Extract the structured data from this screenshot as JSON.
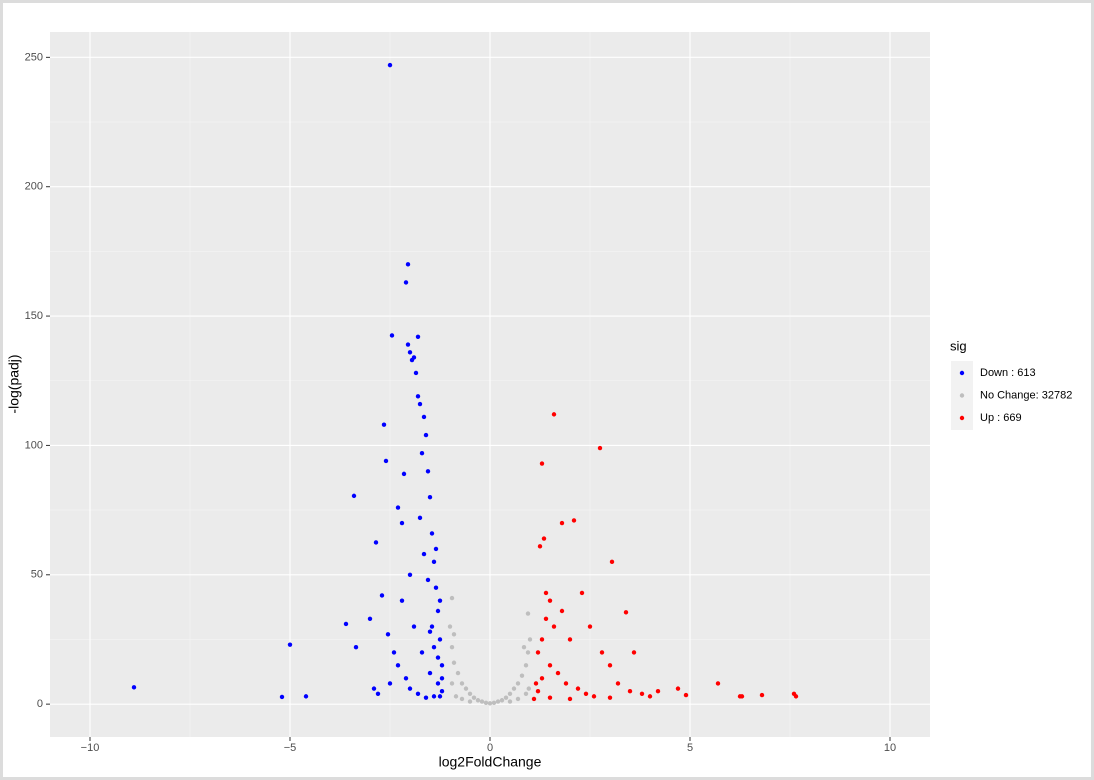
{
  "chart_data": {
    "type": "scatter",
    "x_label": "log2FoldChange",
    "y_label": "-log(padj)",
    "legend_title": "sig",
    "legend_position": "right",
    "grid": true,
    "xlim": [
      -11,
      11
    ],
    "ylim": [
      -12.7,
      259.8
    ],
    "xticks": [
      {
        "value": -10,
        "label": "−10"
      },
      {
        "value": -5,
        "label": "−5"
      },
      0,
      5,
      10
    ],
    "yticks": [
      0,
      50,
      100,
      150,
      200,
      250
    ],
    "series": [
      {
        "name": "Down : 613",
        "color": "#0000ff",
        "x": [
          -8.9,
          -5.2,
          -5.0,
          -4.6,
          -3.6,
          -3.4,
          -3.35,
          -3.0,
          -2.9,
          -2.8,
          -2.85,
          -2.7,
          -2.65,
          -2.6,
          -2.55,
          -2.5,
          -2.45,
          -2.3,
          -2.2,
          -2.15,
          -2.1,
          -2.05,
          -2.05,
          -2.0,
          -1.95,
          -1.9,
          -1.85,
          -1.8,
          -1.8,
          -1.75,
          -1.7,
          -1.65,
          -1.6,
          -1.55,
          -1.5,
          -1.45,
          -1.4,
          -1.35,
          -1.3,
          -1.25,
          -1.2,
          -1.2,
          -1.3,
          -1.5,
          -1.7,
          -1.9,
          -2.0,
          -2.1,
          -2.3,
          -2.5,
          -1.4,
          -1.6,
          -1.8,
          -2.0,
          -1.25,
          -1.35,
          -1.45,
          -1.55,
          -1.65,
          -1.75,
          -2.2,
          -2.4,
          -1.3,
          -1.4,
          -1.5,
          -1.2,
          -1.25
        ],
        "values": [
          6.5,
          2.8,
          23,
          3,
          31,
          80.5,
          22,
          33,
          6,
          4,
          62.5,
          42,
          108,
          94,
          27,
          247,
          142.5,
          76,
          70,
          89,
          163,
          170,
          139,
          136,
          133,
          134,
          128,
          142,
          119,
          116,
          97,
          111,
          104,
          90,
          80,
          66,
          55,
          45,
          36,
          25,
          15,
          5,
          8,
          12,
          20,
          30,
          50,
          10,
          15,
          8,
          3,
          2.5,
          4,
          6,
          40,
          60,
          30,
          48,
          58,
          72,
          40,
          20,
          18,
          22,
          28,
          10,
          3
        ]
      },
      {
        "name": "No Change: 32782",
        "color": "#bebebe",
        "x": [
          0,
          -0.1,
          0.1,
          -0.2,
          0.2,
          -0.3,
          0.3,
          -0.4,
          0.4,
          -0.5,
          0.5,
          -0.6,
          0.6,
          -0.7,
          0.7,
          -0.8,
          0.8,
          -0.9,
          0.9,
          -0.95,
          0.95,
          -1.0,
          1.0,
          -0.95,
          0.95,
          -0.9,
          0.85,
          -0.5,
          0.5,
          -0.7,
          0.7,
          -0.85,
          0.9,
          -0.95,
          0.97
        ],
        "values": [
          0.3,
          0.5,
          0.5,
          1,
          1,
          1.5,
          1.5,
          2.5,
          2.5,
          4,
          4,
          6,
          6,
          8,
          8,
          12,
          11,
          16,
          15,
          22,
          20,
          30,
          25,
          41,
          35,
          27,
          22,
          1,
          1,
          2,
          2,
          3,
          4,
          8,
          6
        ]
      },
      {
        "name": "Up : 669",
        "color": "#ff0000",
        "x": [
          1.1,
          1.2,
          1.3,
          1.25,
          1.35,
          1.3,
          1.6,
          1.8,
          2.1,
          2.75,
          3.05,
          3.4,
          3.6,
          2.3,
          1.4,
          1.5,
          1.6,
          1.8,
          2.0,
          2.5,
          2.8,
          3.0,
          3.2,
          3.5,
          3.8,
          4.0,
          4.2,
          4.7,
          4.9,
          5.7,
          6.25,
          6.3,
          6.8,
          7.6,
          7.65,
          1.5,
          1.7,
          1.9,
          2.2,
          2.4,
          2.6,
          1.2,
          1.3,
          1.4,
          1.15,
          1.5,
          2.0,
          3.0
        ],
        "values": [
          2,
          5,
          10,
          61,
          64,
          93,
          112,
          70,
          71,
          99,
          55,
          35.5,
          20,
          43,
          43,
          40,
          30,
          36,
          25,
          30,
          20,
          15,
          8,
          5,
          4,
          3,
          5,
          6,
          3.5,
          8,
          3,
          3,
          3.5,
          4,
          3,
          15,
          12,
          8,
          6,
          4,
          3,
          20,
          25,
          33,
          8,
          2.5,
          2,
          2.5
        ]
      }
    ]
  }
}
